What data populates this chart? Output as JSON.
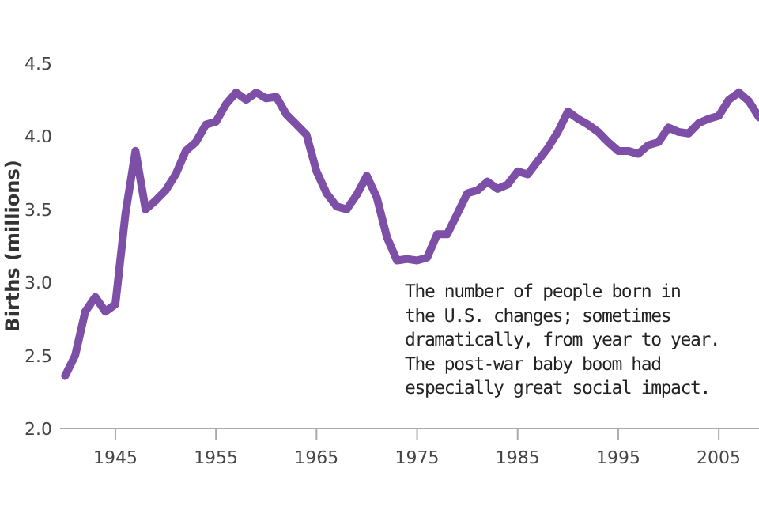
{
  "chart_data": {
    "type": "line",
    "ylabel": "Births (millions)",
    "x": [
      1940,
      1941,
      1942,
      1943,
      1944,
      1945,
      1946,
      1947,
      1948,
      1949,
      1950,
      1951,
      1952,
      1953,
      1954,
      1955,
      1956,
      1957,
      1958,
      1959,
      1960,
      1961,
      1962,
      1963,
      1964,
      1965,
      1966,
      1967,
      1968,
      1969,
      1970,
      1971,
      1972,
      1973,
      1974,
      1975,
      1976,
      1977,
      1978,
      1979,
      1980,
      1981,
      1982,
      1983,
      1984,
      1985,
      1986,
      1987,
      1988,
      1989,
      1990,
      1991,
      1992,
      1993,
      1994,
      1995,
      1996,
      1997,
      1998,
      1999,
      2000,
      2001,
      2002,
      2003,
      2004,
      2005,
      2006,
      2007,
      2008,
      2009
    ],
    "series": [
      {
        "color": "#7d4fa6",
        "values": [
          2.36,
          2.5,
          2.8,
          2.9,
          2.8,
          2.85,
          3.47,
          3.9,
          3.5,
          3.56,
          3.63,
          3.74,
          3.9,
          3.96,
          4.08,
          4.1,
          4.22,
          4.3,
          4.25,
          4.3,
          4.26,
          4.27,
          4.15,
          4.08,
          4.01,
          3.76,
          3.61,
          3.52,
          3.5,
          3.6,
          3.73,
          3.58,
          3.31,
          3.15,
          3.16,
          3.15,
          3.17,
          3.33,
          3.33,
          3.47,
          3.61,
          3.63,
          3.69,
          3.64,
          3.67,
          3.76,
          3.74,
          3.83,
          3.92,
          4.03,
          4.17,
          4.12,
          4.08,
          4.03,
          3.96,
          3.9,
          3.9,
          3.88,
          3.94,
          3.96,
          4.06,
          4.03,
          4.02,
          4.09,
          4.12,
          4.14,
          4.25,
          4.3,
          4.24,
          4.13
        ]
      }
    ],
    "xlim": [
      1939.5,
      2009
    ],
    "ylim": [
      2.0,
      4.5
    ],
    "xticks": [
      1945,
      1955,
      1965,
      1975,
      1985,
      1995,
      2005
    ],
    "yticks": [
      {
        "value": 2,
        "label": "2.0"
      },
      2.5,
      {
        "value": 3,
        "label": "3.0"
      },
      3.5,
      {
        "value": 4,
        "label": "4.0"
      },
      4.5
    ],
    "marker": "none",
    "line_style": "solid",
    "annotations": [
      "The number of people born in\nthe U.S. changes; sometimes\ndramatically, from year to year.\nThe post-war baby boom had\nespecially great social impact."
    ]
  }
}
